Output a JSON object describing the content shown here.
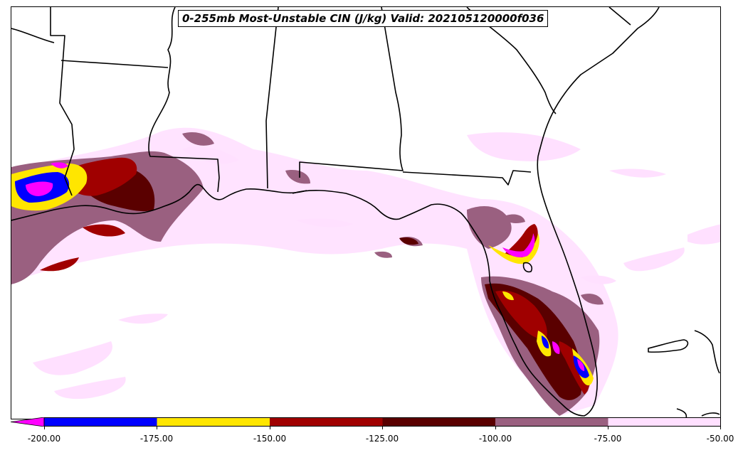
{
  "title": "0-255mb Most-Unstable CIN (J/kg) Valid: 202105120000f036",
  "colors": {
    "lt_neg200": "#ff00ff",
    "neg200_neg175": "#0000ff",
    "neg175_neg150": "#ffe600",
    "neg150_neg125": "#a00000",
    "neg125_neg100": "#5a0000",
    "neg100_neg75": "#9a6080",
    "neg75_neg50": "#ffe0ff",
    "border": "#000000"
  },
  "colorbar": {
    "ticks": [
      "-200.00",
      "-175.00",
      "-150.00",
      "-125.00",
      "-100.00",
      "-75.00",
      "-50.00"
    ],
    "min": -200,
    "max": -50,
    "extend": "min"
  }
}
